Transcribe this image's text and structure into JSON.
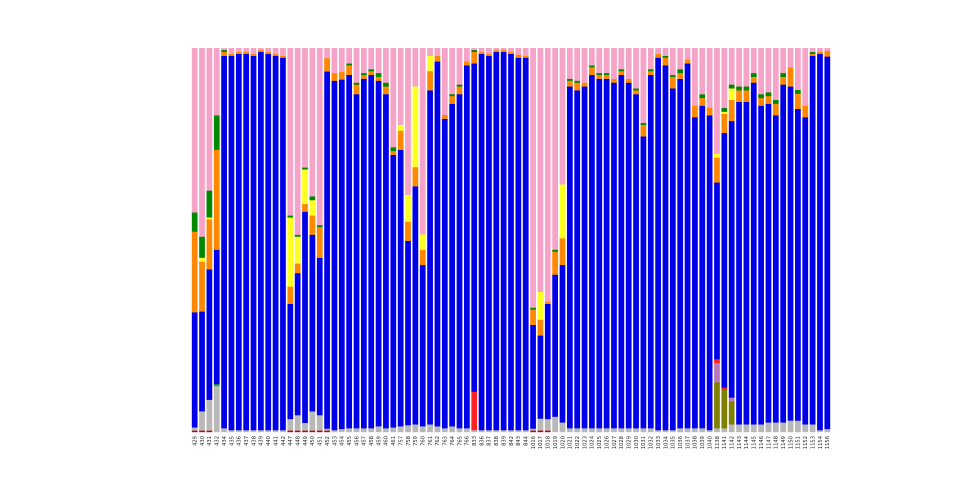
{
  "chart_data": {
    "type": "bar",
    "stacked": "normalized",
    "ylim": [
      0,
      1
    ],
    "grid": false,
    "legend": "none",
    "categories": [
      "429",
      "430",
      "431",
      "432",
      "434",
      "435",
      "436",
      "437",
      "438",
      "439",
      "440",
      "441",
      "442",
      "447",
      "448",
      "449",
      "450",
      "451",
      "452",
      "453",
      "454",
      "455",
      "456",
      "457",
      "458",
      "459",
      "460",
      "461",
      "757",
      "758",
      "759",
      "760",
      "761",
      "762",
      "763",
      "764",
      "765",
      "766",
      "833",
      "836",
      "837",
      "838",
      "839",
      "842",
      "843",
      "844",
      "1016",
      "1017",
      "1018",
      "1019",
      "1020",
      "1021",
      "1022",
      "1023",
      "1024",
      "1025",
      "1026",
      "1027",
      "1028",
      "1029",
      "1030",
      "1031",
      "1032",
      "1033",
      "1034",
      "1035",
      "1036",
      "1037",
      "1038",
      "1039",
      "1040",
      "1138",
      "1141",
      "1142",
      "1143",
      "1144",
      "1145",
      "1146",
      "1147",
      "1148",
      "1149",
      "1150",
      "1151",
      "1152",
      "1153",
      "1154",
      "1156"
    ],
    "series": [
      {
        "color": "#cc0000",
        "values": [
          0.004,
          0.004,
          0.004,
          0,
          0,
          0,
          0,
          0,
          0,
          0,
          0,
          0,
          0,
          0.004,
          0.004,
          0.004,
          0.004,
          0.004,
          0.004,
          0,
          0,
          0,
          0,
          0,
          0,
          0,
          0,
          0,
          0,
          0,
          0,
          0,
          0,
          0,
          0,
          0,
          0,
          0,
          0,
          0,
          0,
          0,
          0,
          0,
          0,
          0,
          0.004,
          0.004,
          0.004,
          0,
          0,
          0,
          0,
          0,
          0,
          0,
          0,
          0,
          0,
          0,
          0,
          0,
          0,
          0,
          0,
          0,
          0,
          0,
          0,
          0,
          0,
          0,
          0,
          0,
          0,
          0,
          0,
          0,
          0,
          0,
          0,
          0,
          0,
          0,
          0,
          0,
          0
        ]
      },
      {
        "color": "#b8b8b8",
        "values": [
          0.008,
          0.05,
          0.08,
          0.12,
          0.01,
          0.005,
          0.005,
          0.005,
          0.005,
          0.005,
          0.005,
          0.005,
          0.005,
          0.03,
          0.04,
          0.02,
          0.05,
          0.04,
          0.005,
          0.005,
          0.008,
          0.01,
          0.01,
          0.01,
          0.01,
          0.015,
          0.01,
          0.012,
          0.015,
          0.018,
          0.02,
          0.015,
          0.02,
          0.015,
          0.01,
          0.015,
          0.01,
          0.01,
          0.005,
          0.005,
          0.005,
          0.005,
          0.005,
          0.005,
          0.005,
          0.005,
          0.005,
          0.03,
          0.03,
          0.04,
          0.025,
          0.01,
          0.01,
          0.01,
          0.01,
          0.01,
          0.01,
          0.01,
          0.01,
          0.01,
          0.01,
          0.01,
          0.01,
          0.005,
          0.005,
          0.005,
          0.01,
          0.01,
          0.01,
          0.01,
          0.005,
          0.01,
          0.01,
          0.02,
          0.02,
          0.02,
          0.02,
          0.02,
          0.025,
          0.025,
          0.025,
          0.03,
          0.03,
          0.02,
          0.02,
          0.005,
          0.008
        ]
      },
      {
        "color": "#22aa22",
        "values": [
          0,
          0,
          0,
          0.005,
          0,
          0,
          0,
          0,
          0,
          0,
          0,
          0,
          0,
          0,
          0,
          0,
          0,
          0,
          0,
          0,
          0,
          0,
          0,
          0,
          0,
          0,
          0,
          0,
          0,
          0,
          0,
          0,
          0,
          0,
          0,
          0,
          0,
          0,
          0,
          0,
          0,
          0,
          0,
          0,
          0,
          0,
          0,
          0,
          0,
          0,
          0,
          0,
          0,
          0,
          0,
          0,
          0,
          0,
          0,
          0,
          0,
          0,
          0,
          0,
          0,
          0,
          0,
          0,
          0,
          0,
          0,
          0,
          0,
          0,
          0,
          0,
          0,
          0,
          0,
          0,
          0,
          0,
          0,
          0,
          0,
          0,
          0
        ]
      },
      {
        "color": "#808000",
        "values": [
          0,
          0,
          0,
          0,
          0,
          0,
          0,
          0,
          0,
          0,
          0,
          0,
          0,
          0,
          0,
          0,
          0,
          0,
          0,
          0,
          0,
          0,
          0,
          0,
          0,
          0,
          0,
          0,
          0,
          0,
          0,
          0,
          0,
          0,
          0,
          0,
          0,
          0,
          0,
          0,
          0,
          0,
          0,
          0,
          0,
          0,
          0,
          0,
          0,
          0,
          0,
          0,
          0,
          0,
          0,
          0,
          0,
          0,
          0,
          0,
          0,
          0,
          0,
          0,
          0,
          0,
          0,
          0,
          0,
          0,
          0,
          0.12,
          0.1,
          0.06,
          0,
          0,
          0,
          0,
          0,
          0,
          0,
          0,
          0,
          0,
          0,
          0,
          0
        ]
      },
      {
        "color": "#bb77bb",
        "values": [
          0,
          0,
          0,
          0,
          0,
          0,
          0,
          0,
          0,
          0,
          0,
          0,
          0,
          0,
          0,
          0,
          0,
          0,
          0,
          0,
          0,
          0,
          0,
          0,
          0,
          0,
          0,
          0,
          0,
          0,
          0,
          0,
          0,
          0,
          0,
          0,
          0,
          0,
          0,
          0,
          0,
          0,
          0,
          0,
          0,
          0,
          0,
          0,
          0,
          0,
          0,
          0,
          0,
          0,
          0,
          0,
          0,
          0,
          0,
          0,
          0,
          0,
          0,
          0,
          0,
          0,
          0,
          0,
          0,
          0,
          0,
          0.05,
          0,
          0.01,
          0,
          0,
          0,
          0,
          0,
          0,
          0,
          0,
          0,
          0,
          0,
          0,
          0
        ]
      },
      {
        "color": "#ff2222",
        "values": [
          0,
          0,
          0,
          0,
          0,
          0,
          0,
          0,
          0,
          0,
          0,
          0,
          0,
          0,
          0,
          0,
          0,
          0,
          0,
          0,
          0,
          0,
          0,
          0,
          0,
          0,
          0,
          0,
          0,
          0,
          0,
          0,
          0,
          0,
          0,
          0,
          0,
          0,
          0.1,
          0,
          0,
          0,
          0,
          0,
          0,
          0,
          0,
          0,
          0,
          0,
          0,
          0,
          0,
          0,
          0,
          0,
          0,
          0,
          0,
          0,
          0,
          0,
          0,
          0,
          0,
          0,
          0,
          0,
          0,
          0,
          0,
          0.01,
          0.005,
          0,
          0,
          0,
          0,
          0,
          0,
          0,
          0,
          0,
          0,
          0,
          0,
          0,
          0
        ]
      },
      {
        "color": "#0000e8",
        "values": [
          0.3,
          0.26,
          0.34,
          0.35,
          0.97,
          0.975,
          0.98,
          0.98,
          0.975,
          0.985,
          0.98,
          0.975,
          0.97,
          0.3,
          0.37,
          0.55,
          0.46,
          0.41,
          0.93,
          0.91,
          0.91,
          0.92,
          0.87,
          0.91,
          0.92,
          0.9,
          0.87,
          0.71,
          0.72,
          0.48,
          0.62,
          0.42,
          0.87,
          0.95,
          0.81,
          0.84,
          0.87,
          0.945,
          0.855,
          0.98,
          0.975,
          0.985,
          0.985,
          0.98,
          0.97,
          0.97,
          0.27,
          0.21,
          0.3,
          0.37,
          0.41,
          0.89,
          0.88,
          0.89,
          0.92,
          0.91,
          0.91,
          0.9,
          0.92,
          0.9,
          0.87,
          0.76,
          0.92,
          0.97,
          0.95,
          0.89,
          0.91,
          0.95,
          0.81,
          0.84,
          0.82,
          0.46,
          0.66,
          0.72,
          0.84,
          0.84,
          0.89,
          0.83,
          0.83,
          0.8,
          0.88,
          0.87,
          0.82,
          0.8,
          0.96,
          0.985,
          0.97
        ]
      },
      {
        "color": "#ff8800",
        "values": [
          0.21,
          0.13,
          0.13,
          0.26,
          0.01,
          0.005,
          0.005,
          0.005,
          0.005,
          0.005,
          0.005,
          0.005,
          0.005,
          0.045,
          0.025,
          0.02,
          0.05,
          0.08,
          0.035,
          0.02,
          0.02,
          0.025,
          0.025,
          0.01,
          0.01,
          0.01,
          0.02,
          0.01,
          0.05,
          0.05,
          0.05,
          0.04,
          0.05,
          0.015,
          0.01,
          0.02,
          0.02,
          0.01,
          0.03,
          0.005,
          0.005,
          0.005,
          0.005,
          0.005,
          0.008,
          0.005,
          0.04,
          0.04,
          0.005,
          0.06,
          0.07,
          0.015,
          0.02,
          0.01,
          0.02,
          0.01,
          0.01,
          0.01,
          0.01,
          0.01,
          0.01,
          0.03,
          0.01,
          0.01,
          0.02,
          0.03,
          0.015,
          0.01,
          0.03,
          0.02,
          0.02,
          0.065,
          0.05,
          0.055,
          0.03,
          0.03,
          0.015,
          0.02,
          0.02,
          0.03,
          0.02,
          0.05,
          0.04,
          0.03,
          0.005,
          0.005,
          0.015
        ]
      },
      {
        "color": "#ffff22",
        "values": [
          0,
          0.01,
          0.005,
          0,
          0,
          0,
          0,
          0,
          0,
          0,
          0,
          0,
          0,
          0.18,
          0.07,
          0.09,
          0.04,
          0,
          0,
          0,
          0,
          0,
          0,
          0,
          0,
          0,
          0,
          0,
          0.015,
          0.07,
          0.21,
          0.04,
          0.04,
          0,
          0,
          0,
          0,
          0,
          0,
          0,
          0,
          0,
          0,
          0,
          0,
          0,
          0,
          0.07,
          0,
          0,
          0.14,
          0,
          0,
          0,
          0,
          0,
          0,
          0,
          0,
          0,
          0,
          0,
          0,
          0,
          0,
          0,
          0,
          0,
          0,
          0,
          0,
          0.01,
          0.005,
          0.03,
          0,
          0,
          0,
          0,
          0,
          0,
          0,
          0,
          0,
          0,
          0,
          0,
          0
        ]
      },
      {
        "color": "#008800",
        "values": [
          0.05,
          0.055,
          0.07,
          0.09,
          0.005,
          0,
          0,
          0,
          0,
          0,
          0,
          0,
          0,
          0.005,
          0.005,
          0.005,
          0.01,
          0.005,
          0,
          0,
          0,
          0.005,
          0.005,
          0.005,
          0.005,
          0.01,
          0.01,
          0.01,
          0,
          0,
          0,
          0,
          0,
          0,
          0,
          0.005,
          0.005,
          0,
          0.005,
          0,
          0,
          0,
          0,
          0,
          0,
          0,
          0.005,
          0,
          0,
          0.005,
          0,
          0.005,
          0.005,
          0,
          0.005,
          0.005,
          0.005,
          0,
          0.005,
          0,
          0.005,
          0.005,
          0.005,
          0,
          0.005,
          0.005,
          0.01,
          0,
          0,
          0.01,
          0,
          0,
          0.01,
          0.01,
          0.01,
          0.01,
          0.01,
          0.01,
          0.01,
          0.01,
          0.01,
          0,
          0.01,
          0,
          0.005,
          0,
          0
        ]
      },
      {
        "color": "#f5a3c7",
        "values": [
          0.428,
          0.491,
          0.371,
          0.175,
          0.005,
          0.015,
          0.01,
          0.01,
          0.015,
          0.005,
          0.01,
          0.015,
          0.02,
          0.436,
          0.486,
          0.311,
          0.386,
          0.461,
          0.026,
          0.065,
          0.062,
          0.04,
          0.09,
          0.065,
          0.055,
          0.065,
          0.09,
          0.258,
          0.2,
          0.382,
          0.1,
          0.485,
          0.02,
          0.02,
          0.175,
          0.12,
          0.095,
          0.035,
          0.005,
          0.01,
          0.015,
          0.005,
          0.005,
          0.01,
          0.017,
          0.02,
          0.676,
          0.616,
          0.661,
          0.525,
          0.355,
          0.08,
          0.085,
          0.09,
          0.045,
          0.065,
          0.065,
          0.08,
          0.055,
          0.08,
          0.105,
          0.195,
          0.055,
          0.015,
          0.02,
          0.07,
          0.055,
          0.03,
          0.15,
          0.12,
          0.155,
          0.275,
          0.155,
          0.095,
          0.1,
          0.1,
          0.065,
          0.12,
          0.115,
          0.135,
          0.065,
          0.05,
          0.11,
          0.15,
          0.01,
          0.01,
          0.007
        ]
      }
    ]
  }
}
